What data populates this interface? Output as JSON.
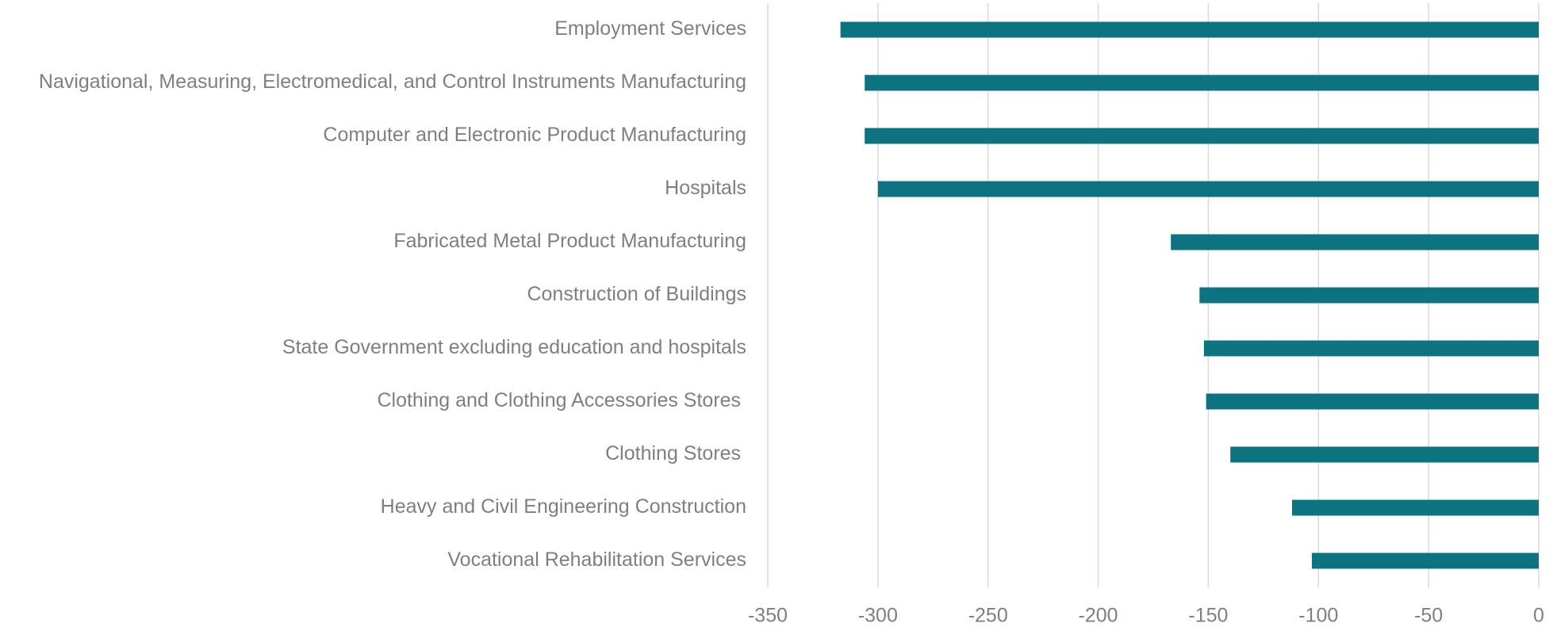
{
  "chart_data": {
    "type": "bar",
    "orientation": "horizontal",
    "categories": [
      "Employment Services",
      "Navigational, Measuring, Electromedical, and Control Instruments Manufacturing",
      "Computer and Electronic Product Manufacturing",
      "Hospitals",
      "Fabricated Metal Product Manufacturing",
      "Construction of Buildings",
      "State Government excluding education and hospitals",
      "Clothing and Clothing Accessories Stores ",
      "Clothing Stores ",
      "Heavy and Civil Engineering Construction",
      "Vocational Rehabilitation Services"
    ],
    "values": [
      -317,
      -306,
      -306,
      -300,
      -167,
      -154,
      -152,
      -151,
      -140,
      -112,
      -103
    ],
    "color": "#0e7381",
    "xlim": [
      -350,
      0
    ],
    "xticks": [
      -350,
      -300,
      -250,
      -200,
      -150,
      -100,
      -50,
      0
    ],
    "grid": true
  }
}
